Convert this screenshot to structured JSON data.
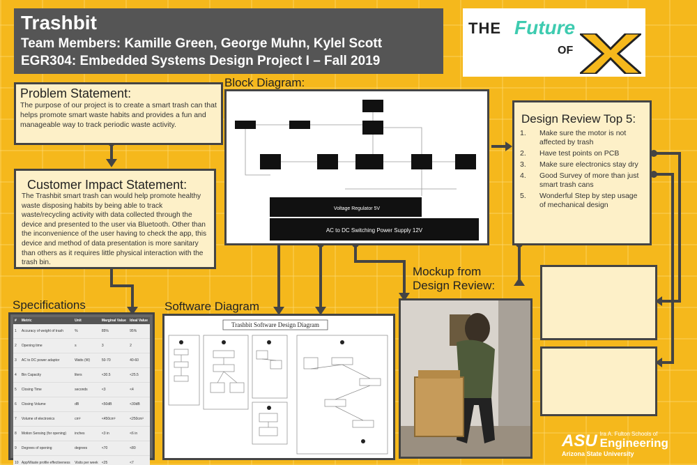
{
  "header": {
    "title": "Trashbit",
    "team": "Team Members: Kamille Green, George Muhn, Kylel Scott",
    "course": "EGR304: Embedded Systems Design Project I – Fall 2019"
  },
  "logo": {
    "the": "THE",
    "future": "Future",
    "of": "OF"
  },
  "problem": {
    "title": "Problem Statement:",
    "text": "The purpose of our project is to create a smart trash can that helps promote smart waste habits and provides a fun and manageable way to track periodic waste activity."
  },
  "customer": {
    "title": "Customer Impact Statement:",
    "text": "The Trashbit smart trash can would help promote healthy waste disposing habits by being able to track waste/recycling activity with data collected through the device and presented to the user via Bluetooth. Other than the inconvenience of the user having to check the app, this device and method of data presentation is more sanitary than others as it requires little physical interaction with the trash bin."
  },
  "block_diagram": {
    "label": "Block Diagram:",
    "voltage_reg": "Voltage Regulator 5V",
    "psu": "AC to DC Switching Power Supply 12V"
  },
  "design_review": {
    "title": "Design Review Top 5:",
    "items": [
      {
        "n": "1.",
        "text": "Make sure the motor is not affected by trash"
      },
      {
        "n": "2.",
        "text": "Have test points on PCB"
      },
      {
        "n": "3.",
        "text": "Make sure electronics stay dry"
      },
      {
        "n": "4.",
        "text": "Good Survey of more than just smart trash cans"
      },
      {
        "n": "5.",
        "text": " Wonderful Step by step usage of mechanical design"
      }
    ]
  },
  "mockup": {
    "label_line1": "Mockup from",
    "label_line2": "Design Review:"
  },
  "specs": {
    "label": "Specifications",
    "headers": [
      "#",
      "Metric",
      "Unit",
      "Marginal Value",
      "Ideal Value"
    ],
    "rows": [
      [
        "1",
        "Accuracy of weight of trash",
        "%",
        "85%",
        "95%"
      ],
      [
        "2",
        "Opening time",
        "s",
        "3",
        "2"
      ],
      [
        "3",
        "AC to DC power adaptor",
        "Watts (W)",
        "50-70",
        "40-60"
      ],
      [
        "4",
        "Bin Capacity",
        "liters",
        "<30.5",
        "<25.5"
      ],
      [
        "5",
        "Closing Time",
        "seconds",
        "<3",
        "<4"
      ],
      [
        "6",
        "Closing Volume",
        "dB",
        "<50dB",
        "<30dB"
      ],
      [
        "7",
        "Volume of electronics",
        "cm³",
        "<450cm³",
        "<250cm³"
      ],
      [
        "8",
        "Motion Sensing (for opening)",
        "inches",
        "<3 in",
        "<6 in"
      ],
      [
        "9",
        "Degrees of opening",
        "degrees",
        "<70",
        "<80"
      ],
      [
        "10",
        "App/Waste profile effectiveness",
        "Visits per week",
        "<25",
        "<7"
      ]
    ]
  },
  "software": {
    "label": "Software Diagram",
    "diagram_title": "Trashbit Software Design Diagram"
  },
  "asu": {
    "line1": "Ira A. Fulton Schools of",
    "line2": "Engineering",
    "line3": "Arizona State University"
  },
  "colors": {
    "background": "#f5b81c",
    "panel": "#fdf0c8",
    "dark": "#555555",
    "accent": "#3ecbb0"
  }
}
